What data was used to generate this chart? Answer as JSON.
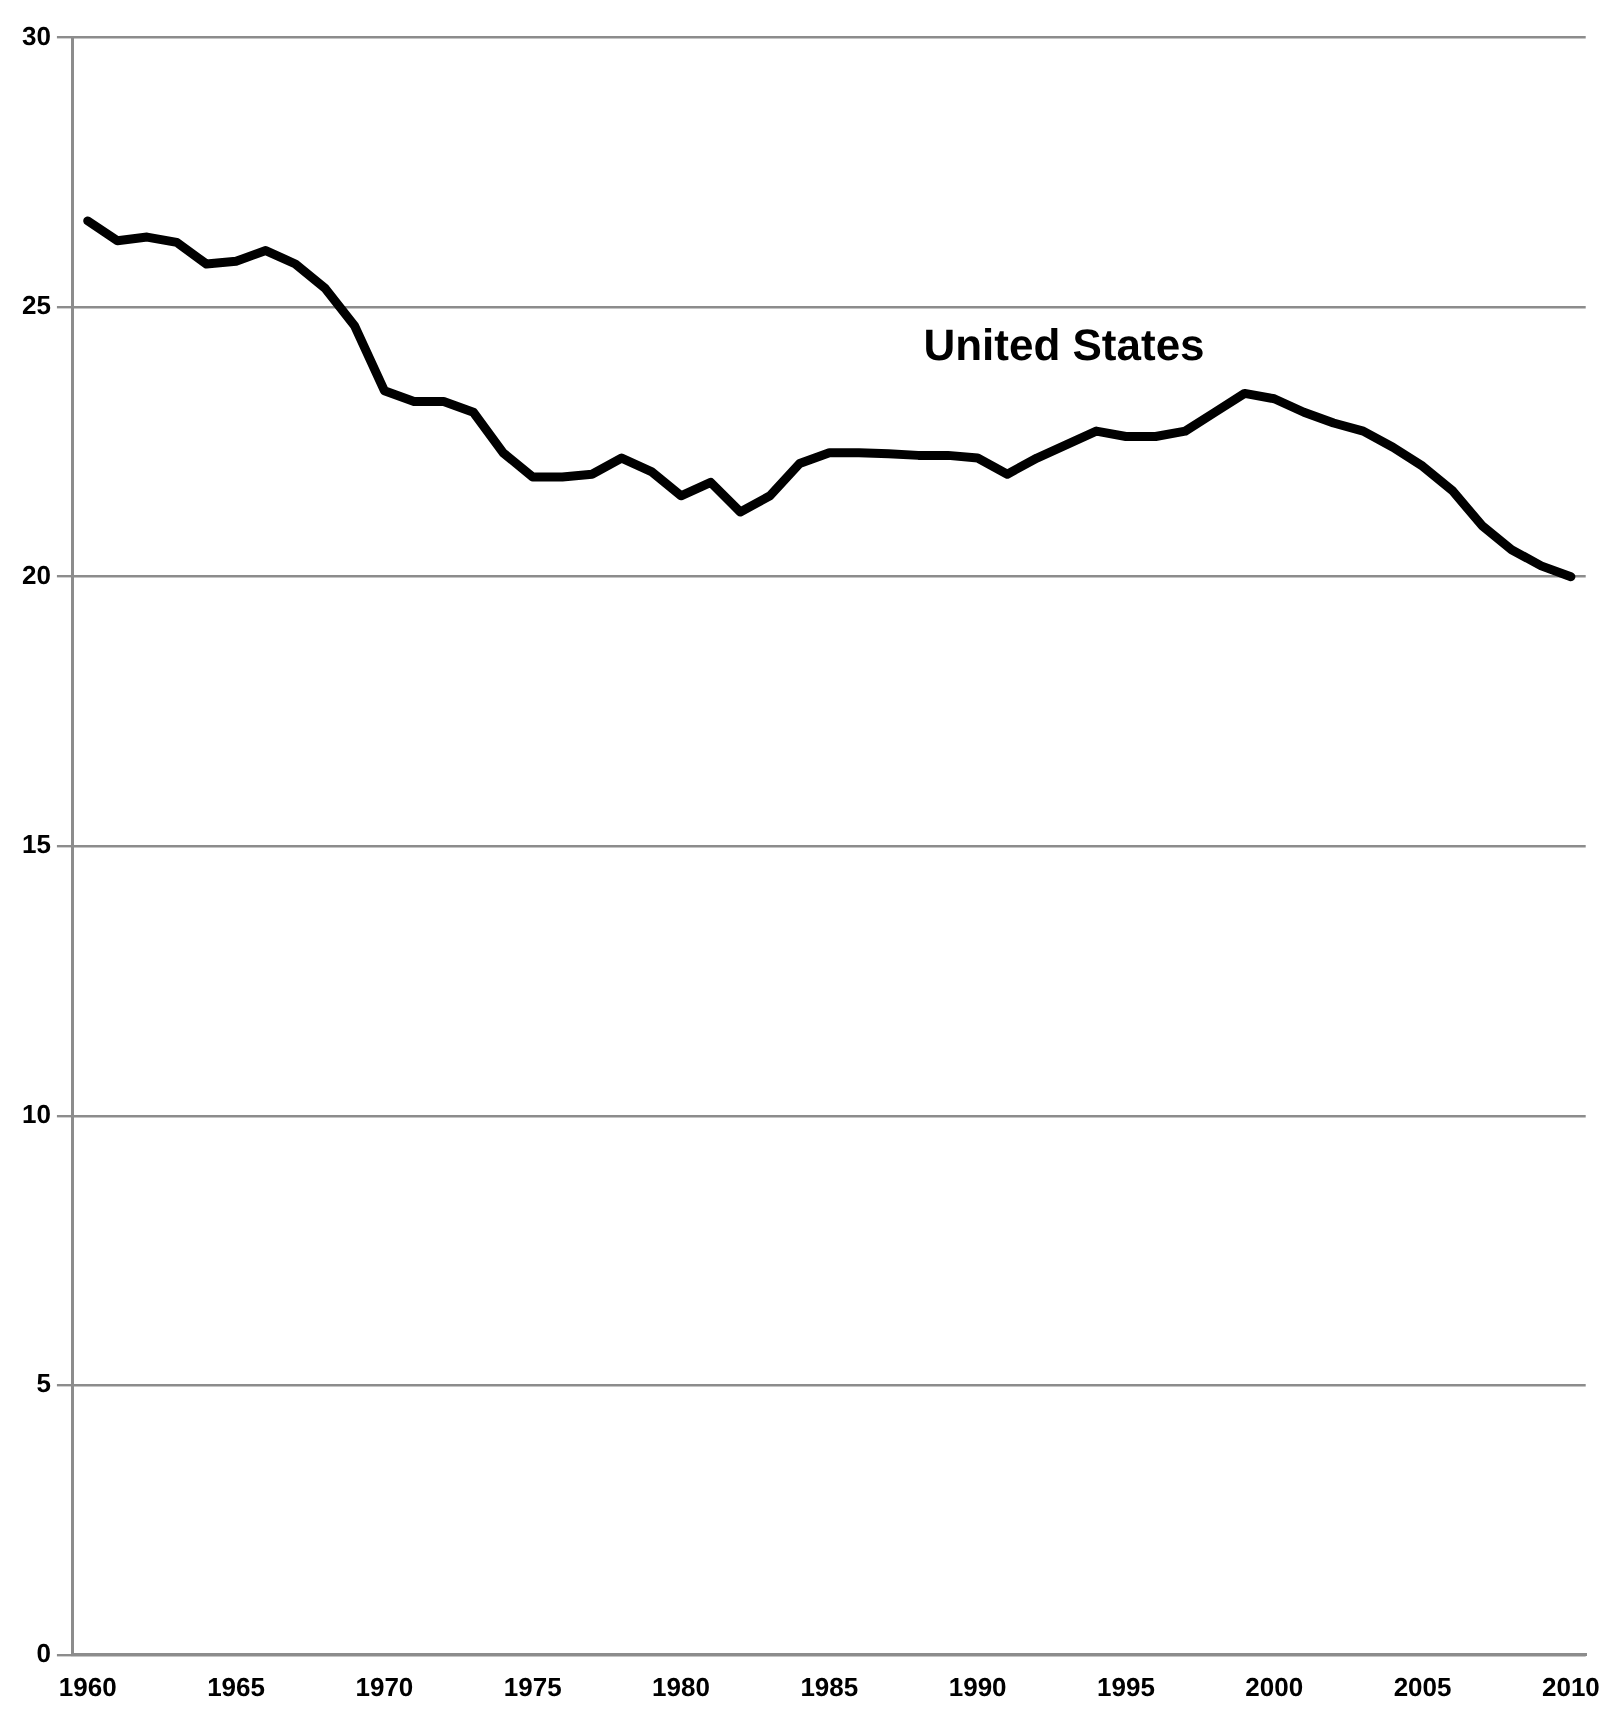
{
  "chart_data": {
    "type": "line",
    "x": [
      1960,
      1961,
      1962,
      1963,
      1964,
      1965,
      1966,
      1967,
      1968,
      1969,
      1970,
      1971,
      1972,
      1973,
      1974,
      1975,
      1976,
      1977,
      1978,
      1979,
      1980,
      1981,
      1982,
      1983,
      1984,
      1985,
      1986,
      1987,
      1988,
      1989,
      1990,
      1991,
      1992,
      1993,
      1994,
      1995,
      1996,
      1997,
      1998,
      1999,
      2000,
      2001,
      2002,
      2003,
      2004,
      2005,
      2006,
      2007,
      2008,
      2009,
      2010
    ],
    "series": [
      {
        "name": "United States",
        "color": "#000000",
        "values": [
          26.6,
          26.23,
          26.3,
          26.2,
          25.8,
          25.85,
          26.05,
          25.8,
          25.35,
          24.65,
          23.45,
          23.25,
          23.25,
          23.05,
          22.3,
          21.85,
          21.85,
          21.9,
          22.2,
          21.95,
          21.5,
          21.75,
          21.2,
          21.5,
          22.1,
          22.3,
          22.3,
          22.28,
          22.25,
          22.25,
          22.2,
          21.9,
          22.2,
          22.45,
          22.7,
          22.6,
          22.6,
          22.7,
          23.05,
          23.4,
          23.3,
          23.05,
          22.85,
          22.7,
          22.4,
          22.05,
          21.6,
          20.95,
          20.5,
          20.2,
          20.0
        ]
      }
    ],
    "xlim": [
      1959.5,
      2010.5
    ],
    "xticks": [
      1960,
      1965,
      1970,
      1975,
      1980,
      1985,
      1990,
      1995,
      2000,
      2005,
      2010
    ],
    "ylim": [
      0,
      30
    ],
    "yticks": [
      0,
      5,
      10,
      15,
      20,
      25,
      30
    ],
    "grid": "y",
    "legend": false,
    "marker": "none",
    "line_style": "solid"
  }
}
